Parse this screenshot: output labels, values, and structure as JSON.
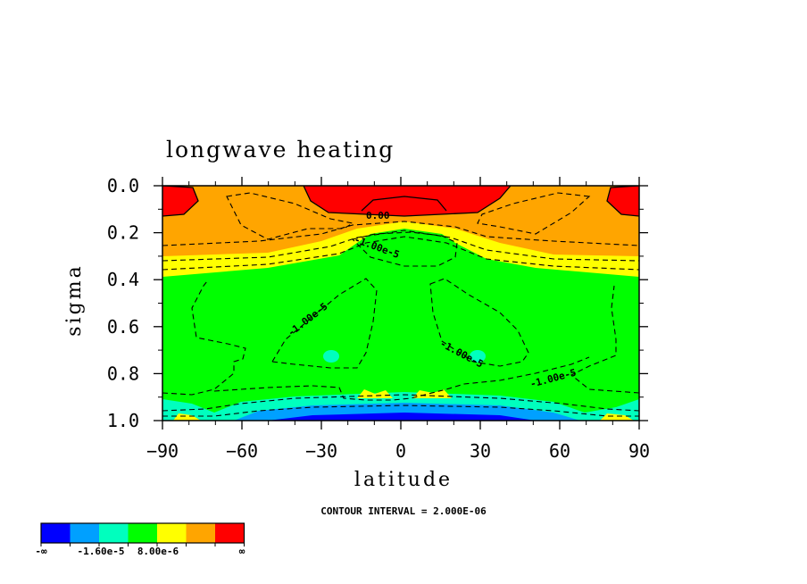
{
  "chart_data": {
    "type": "contour",
    "title": "longwave heating",
    "xlabel": "latitude",
    "ylabel": "sigma",
    "xlim": [
      -90,
      90
    ],
    "ylim": [
      1.0,
      0.0
    ],
    "x_ticks": [
      -90,
      -60,
      -30,
      0,
      30,
      60,
      90
    ],
    "x_tick_labels": [
      "−90",
      "−60",
      "−30",
      "0",
      "30",
      "60",
      "90"
    ],
    "y_ticks": [
      0.0,
      0.2,
      0.4,
      0.6,
      0.8,
      1.0
    ],
    "y_tick_labels": [
      "0.0",
      "0.2",
      "0.4",
      "0.6",
      "0.8",
      "1.0"
    ],
    "contour_interval_note": "CONTOUR INTERVAL = 2.000E-06",
    "contour_interval": 2e-06,
    "contour_labels": [
      {
        "text": "0.00",
        "lat": -3,
        "sigma": 0.15
      },
      {
        "text": "-1.00e-5",
        "lat": -5,
        "sigma": 0.3
      },
      {
        "text": "-1.00e-5",
        "lat": -25,
        "sigma": 0.58
      },
      {
        "text": "-1.00e-5",
        "lat": 25,
        "sigma": 0.76
      },
      {
        "text": "-1.00e-5",
        "lat": 60,
        "sigma": 0.8
      }
    ],
    "fill_colors": [
      "#0000ff",
      "#00a0ff",
      "#00ffbe",
      "#00ff00",
      "#ffff00",
      "#ffa500",
      "#ff0000"
    ],
    "colorbar_labels": [
      "-∞",
      "-1.60e-5",
      "8.00e-6",
      "∞"
    ],
    "grid": false,
    "legend": "bottom-left colorbar"
  }
}
